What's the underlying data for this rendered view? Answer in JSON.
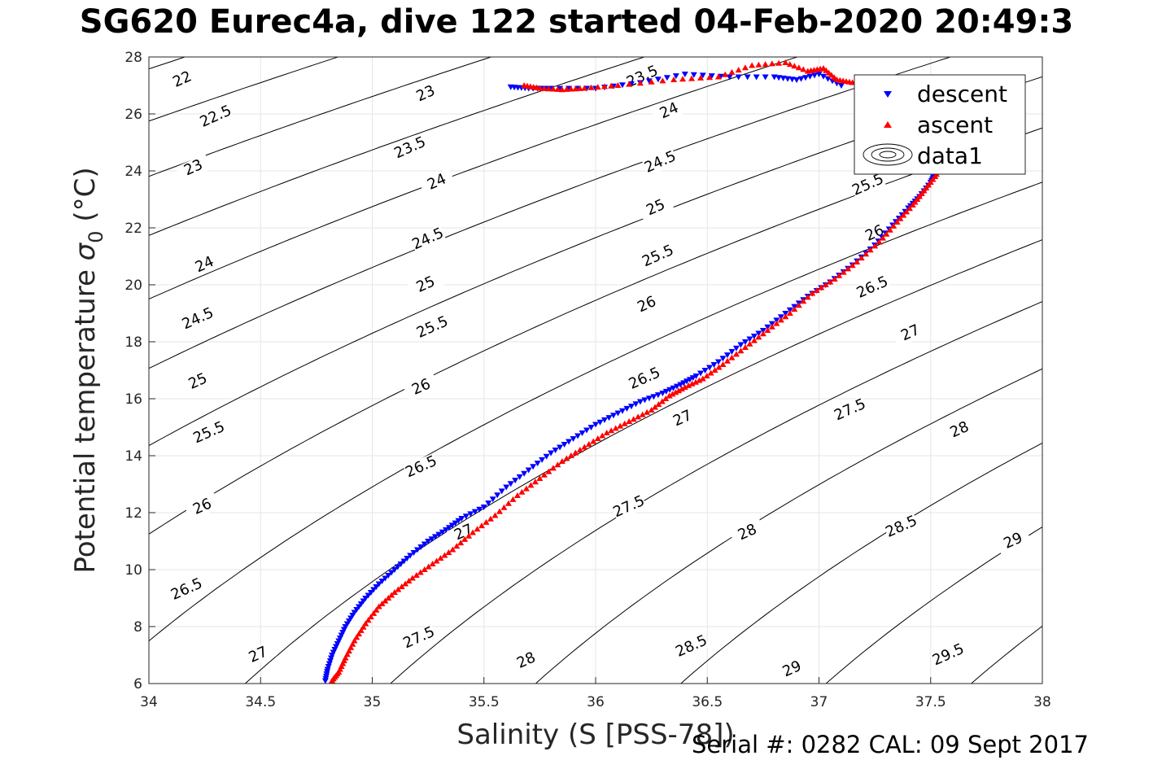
{
  "title": "SG620 Eurec4a, dive 122 started 04-Feb-2020 20:49:3",
  "footer": "Serial #: 0282  CAL: 09 Sept 2017",
  "colors": {
    "descent": "#0000ff",
    "ascent": "#ff0000",
    "contour": "#000000",
    "grid": "#e6e6e6"
  },
  "chart_data": {
    "type": "scatter",
    "xlabel": "Salinity (S [PSS-78])",
    "ylabel_text": "Potential temperature ",
    "ylabel_sym": "σ",
    "ylabel_sub": "0",
    "ylabel_unit": " (°C)",
    "xlim": [
      34,
      38
    ],
    "ylim": [
      6,
      28
    ],
    "xticks": [
      "34",
      "34.5",
      "35",
      "35.5",
      "36",
      "36.5",
      "37",
      "37.5",
      "38"
    ],
    "yticks": [
      "6",
      "8",
      "10",
      "12",
      "14",
      "16",
      "18",
      "20",
      "22",
      "24",
      "26",
      "28"
    ],
    "grid": true,
    "legend_position": "top-right",
    "legend": [
      "descent",
      "ascent",
      "data1"
    ],
    "contours": {
      "levels": [
        22,
        22.5,
        23,
        23.5,
        24,
        24.5,
        25,
        25.5,
        26,
        26.5,
        27,
        27.5,
        28,
        28.5,
        29,
        29.5
      ],
      "labels": [
        {
          "text": "22",
          "s": 34.15,
          "t": 27.2
        },
        {
          "text": "22.5",
          "s": 34.3,
          "t": 25.9
        },
        {
          "text": "23",
          "s": 34.2,
          "t": 24.1
        },
        {
          "text": "23",
          "s": 35.24,
          "t": 26.7
        },
        {
          "text": "23.5",
          "s": 35.17,
          "t": 24.8
        },
        {
          "text": "23.5",
          "s": 36.21,
          "t": 27.3
        },
        {
          "text": "24",
          "s": 34.25,
          "t": 20.7
        },
        {
          "text": "24",
          "s": 35.29,
          "t": 23.6
        },
        {
          "text": "24",
          "s": 36.33,
          "t": 26.1
        },
        {
          "text": "24.5",
          "s": 34.22,
          "t": 18.8
        },
        {
          "text": "24.5",
          "s": 35.25,
          "t": 21.6
        },
        {
          "text": "24.5",
          "s": 36.29,
          "t": 24.3
        },
        {
          "text": "25",
          "s": 34.22,
          "t": 16.6
        },
        {
          "text": "25",
          "s": 35.24,
          "t": 20.0
        },
        {
          "text": "25",
          "s": 36.27,
          "t": 22.7
        },
        {
          "text": "25.5",
          "s": 34.27,
          "t": 14.8
        },
        {
          "text": "25.5",
          "s": 35.27,
          "t": 18.5
        },
        {
          "text": "25.5",
          "s": 36.28,
          "t": 21.0
        },
        {
          "text": "25.5",
          "s": 37.22,
          "t": 23.5
        },
        {
          "text": "26",
          "s": 34.24,
          "t": 12.2
        },
        {
          "text": "26",
          "s": 35.22,
          "t": 16.4
        },
        {
          "text": "26",
          "s": 36.23,
          "t": 19.3
        },
        {
          "text": "26",
          "s": 37.25,
          "t": 21.8
        },
        {
          "text": "26.5",
          "s": 34.17,
          "t": 9.3
        },
        {
          "text": "26.5",
          "s": 35.22,
          "t": 13.6
        },
        {
          "text": "26.5",
          "s": 36.22,
          "t": 16.7
        },
        {
          "text": "26.5",
          "s": 37.24,
          "t": 19.9
        },
        {
          "text": "27",
          "s": 34.49,
          "t": 7.0
        },
        {
          "text": "27",
          "s": 35.41,
          "t": 11.3
        },
        {
          "text": "27",
          "s": 36.39,
          "t": 15.3
        },
        {
          "text": "27",
          "s": 37.41,
          "t": 18.3
        },
        {
          "text": "27.5",
          "s": 35.21,
          "t": 7.6
        },
        {
          "text": "27.5",
          "s": 36.15,
          "t": 12.2
        },
        {
          "text": "27.5",
          "s": 37.14,
          "t": 15.6
        },
        {
          "text": "28",
          "s": 35.69,
          "t": 6.8
        },
        {
          "text": "28",
          "s": 36.68,
          "t": 11.3
        },
        {
          "text": "28",
          "s": 37.63,
          "t": 14.9
        },
        {
          "text": "28.5",
          "s": 36.43,
          "t": 7.3
        },
        {
          "text": "28.5",
          "s": 37.37,
          "t": 11.5
        },
        {
          "text": "29",
          "s": 36.88,
          "t": 6.5
        },
        {
          "text": "29",
          "s": 37.87,
          "t": 11.0
        },
        {
          "text": "29.5",
          "s": 37.58,
          "t": 7.0
        }
      ]
    },
    "series": [
      {
        "name": "descent",
        "marker": "triangle-down",
        "s": [
          34.79,
          34.8,
          34.82,
          34.85,
          34.88,
          34.92,
          34.97,
          35.03,
          35.1,
          35.17,
          35.25,
          35.33,
          35.4,
          35.5,
          35.6,
          35.7,
          35.8,
          35.9,
          36.0,
          36.1,
          36.2,
          36.3,
          36.38,
          36.45,
          36.55,
          36.65,
          36.75,
          36.85,
          36.95,
          37.05,
          37.15,
          37.25,
          37.33,
          37.4,
          37.45,
          37.5,
          37.52,
          37.1,
          37.0,
          36.9,
          36.8,
          36.6,
          36.4,
          36.2,
          36.0,
          35.8,
          35.7,
          35.62
        ],
        "t": [
          6.1,
          6.5,
          7.0,
          7.5,
          8.0,
          8.5,
          9.0,
          9.5,
          10.0,
          10.5,
          11.0,
          11.4,
          11.8,
          12.2,
          12.9,
          13.5,
          14.1,
          14.6,
          15.1,
          15.5,
          15.9,
          16.2,
          16.5,
          16.8,
          17.3,
          17.9,
          18.4,
          19.0,
          19.6,
          20.1,
          20.7,
          21.4,
          22.1,
          22.7,
          23.1,
          23.6,
          23.9,
          27.0,
          27.4,
          27.2,
          27.3,
          27.3,
          27.4,
          27.1,
          26.9,
          26.9,
          26.9,
          26.95
        ]
      },
      {
        "name": "ascent",
        "marker": "triangle-up",
        "s": [
          34.82,
          34.85,
          34.88,
          34.92,
          34.97,
          35.03,
          35.1,
          35.18,
          35.27,
          35.36,
          35.45,
          35.55,
          35.65,
          35.75,
          35.85,
          35.95,
          36.05,
          36.15,
          36.25,
          36.33,
          36.4,
          36.48,
          36.57,
          36.67,
          36.77,
          36.87,
          36.97,
          37.07,
          37.17,
          37.27,
          37.35,
          37.42,
          37.47,
          37.52,
          37.55,
          37.15,
          37.08,
          37.02,
          36.95,
          36.85,
          36.7,
          36.55,
          36.35,
          36.1,
          35.95,
          35.85,
          35.75,
          35.68
        ],
        "t": [
          6.1,
          6.4,
          6.9,
          7.5,
          8.1,
          8.7,
          9.2,
          9.7,
          10.2,
          10.7,
          11.3,
          11.9,
          12.6,
          13.2,
          13.8,
          14.3,
          14.8,
          15.2,
          15.6,
          16.1,
          16.4,
          16.7,
          17.2,
          17.8,
          18.4,
          19.0,
          19.7,
          20.2,
          20.8,
          21.5,
          22.2,
          22.8,
          23.3,
          23.8,
          24.2,
          27.1,
          27.2,
          27.6,
          27.5,
          27.8,
          27.7,
          27.3,
          27.2,
          27.0,
          26.9,
          26.85,
          26.9,
          27.0
        ]
      }
    ]
  }
}
